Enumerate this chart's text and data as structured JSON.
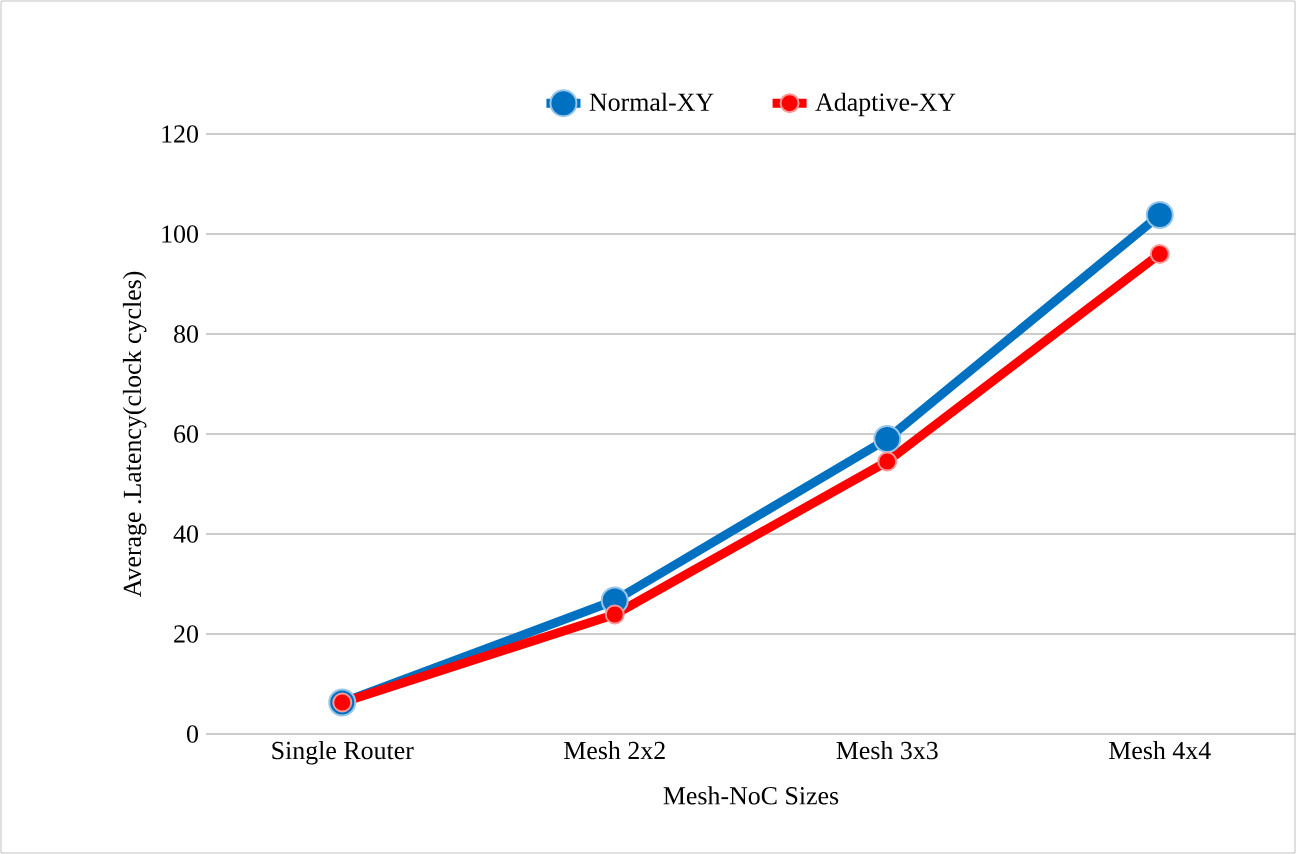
{
  "chart_data": {
    "type": "line",
    "xlabel": "Mesh-NoC Sizes",
    "ylabel": "Average .Latency(clock cycles)",
    "categories": [
      "Single Router",
      "Mesh 2x2",
      "Mesh 3x3",
      "Mesh 4x4"
    ],
    "series": [
      {
        "name": "Normal-XY",
        "color": "#0070c0",
        "values": [
          6.3,
          26.7,
          59,
          103.8
        ]
      },
      {
        "name": "Adaptive-XY",
        "color": "#ff0000",
        "values": [
          6.3,
          23.9,
          54.5,
          96
        ]
      }
    ],
    "ylim": [
      0,
      120
    ],
    "yticks": [
      0,
      20,
      40,
      60,
      80,
      100,
      120
    ],
    "grid": "y",
    "legend": "top",
    "marker": "circle",
    "line_style": "solid"
  }
}
